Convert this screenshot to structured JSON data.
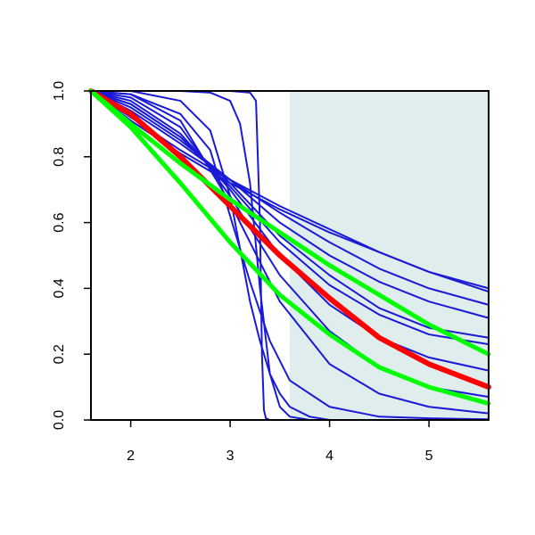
{
  "chart_data": {
    "type": "line",
    "title": "",
    "xlabel": "",
    "ylabel": "",
    "xlim": [
      1.6,
      5.6
    ],
    "ylim": [
      0.0,
      1.0
    ],
    "x_ticks": [
      2,
      3,
      4,
      5
    ],
    "x_tick_labels": [
      "2",
      "3",
      "4",
      "5"
    ],
    "y_ticks": [
      0.0,
      0.2,
      0.4,
      0.6,
      0.8,
      1.0
    ],
    "y_tick_labels": [
      "0.0",
      "0.2",
      "0.4",
      "0.6",
      "0.8",
      "1.0"
    ],
    "grid": false,
    "shaded_region": {
      "x_from": 3.6,
      "x_to": 5.6,
      "color": "#dfeded"
    },
    "colors": {
      "blue_series": "#1a1ad6",
      "red_series": "#ff0000",
      "green_series": "#00ff00"
    },
    "series": [
      {
        "color": "blue",
        "x": [
          1.6,
          2.0,
          2.5,
          3.0,
          3.5,
          4.0,
          4.5,
          5.0,
          5.6
        ],
        "y": [
          1.0,
          0.91,
          0.81,
          0.72,
          0.64,
          0.57,
          0.51,
          0.45,
          0.39
        ]
      },
      {
        "color": "blue",
        "x": [
          1.6,
          2.0,
          2.5,
          3.0,
          3.5,
          4.0,
          4.5,
          5.0,
          5.6
        ],
        "y": [
          1.0,
          0.92,
          0.82,
          0.73,
          0.65,
          0.58,
          0.51,
          0.45,
          0.4
        ]
      },
      {
        "color": "blue",
        "x": [
          1.6,
          2.0,
          2.5,
          3.0,
          3.5,
          4.0,
          4.5,
          5.0,
          5.6
        ],
        "y": [
          1.0,
          0.94,
          0.84,
          0.73,
          0.63,
          0.54,
          0.46,
          0.4,
          0.35
        ]
      },
      {
        "color": "blue",
        "x": [
          1.6,
          2.0,
          2.5,
          3.0,
          3.5,
          4.0,
          4.5,
          5.0,
          5.6
        ],
        "y": [
          1.0,
          0.95,
          0.85,
          0.73,
          0.6,
          0.5,
          0.42,
          0.36,
          0.31
        ]
      },
      {
        "color": "blue",
        "x": [
          1.6,
          2.0,
          2.5,
          3.0,
          3.5,
          4.0,
          4.5,
          5.0,
          5.6
        ],
        "y": [
          1.0,
          0.96,
          0.86,
          0.72,
          0.56,
          0.44,
          0.34,
          0.28,
          0.25
        ]
      },
      {
        "color": "blue",
        "x": [
          1.6,
          2.0,
          2.5,
          3.0,
          3.5,
          4.0,
          4.5,
          5.0,
          5.6
        ],
        "y": [
          1.0,
          0.96,
          0.86,
          0.71,
          0.54,
          0.41,
          0.32,
          0.26,
          0.23
        ]
      },
      {
        "color": "blue",
        "x": [
          1.6,
          2.0,
          2.5,
          3.0,
          3.5,
          4.0,
          4.5,
          5.0,
          5.6
        ],
        "y": [
          1.0,
          0.97,
          0.87,
          0.7,
          0.5,
          0.35,
          0.25,
          0.19,
          0.15
        ]
      },
      {
        "color": "blue",
        "x": [
          1.6,
          2.0,
          2.5,
          3.0,
          3.5,
          4.0,
          4.5,
          5.0,
          5.6
        ],
        "y": [
          1.0,
          0.98,
          0.89,
          0.68,
          0.44,
          0.27,
          0.16,
          0.1,
          0.07
        ]
      },
      {
        "color": "blue",
        "x": [
          1.6,
          2.0,
          2.5,
          3.0,
          3.5,
          4.0,
          4.5,
          5.0,
          5.6
        ],
        "y": [
          1.0,
          0.99,
          0.91,
          0.66,
          0.36,
          0.17,
          0.08,
          0.04,
          0.02
        ]
      },
      {
        "color": "blue",
        "x": [
          1.6,
          2.0,
          2.5,
          2.8,
          3.0,
          3.2,
          3.4,
          3.6,
          4.0,
          4.5,
          5.0,
          5.6
        ],
        "y": [
          1.0,
          0.99,
          0.93,
          0.82,
          0.62,
          0.42,
          0.24,
          0.12,
          0.04,
          0.01,
          0.005,
          0.002
        ]
      },
      {
        "color": "blue",
        "x": [
          1.6,
          2.0,
          2.5,
          2.8,
          3.0,
          3.1,
          3.2,
          3.3,
          3.4,
          3.5,
          3.6,
          3.8,
          4.0,
          5.6
        ],
        "y": [
          1.0,
          1.0,
          0.97,
          0.88,
          0.68,
          0.52,
          0.36,
          0.24,
          0.14,
          0.08,
          0.04,
          0.01,
          0.0,
          0.0
        ]
      },
      {
        "color": "blue",
        "x": [
          1.6,
          2.5,
          2.8,
          3.0,
          3.1,
          3.2,
          3.3,
          3.4,
          3.5,
          3.6,
          3.8,
          5.6
        ],
        "y": [
          1.0,
          1.0,
          0.995,
          0.97,
          0.9,
          0.72,
          0.4,
          0.14,
          0.04,
          0.01,
          0.0,
          0.0
        ]
      },
      {
        "color": "blue",
        "x": [
          1.6,
          3.0,
          3.2,
          3.26,
          3.3,
          3.32,
          3.34,
          3.36,
          3.4,
          5.6
        ],
        "y": [
          1.0,
          1.0,
          0.995,
          0.97,
          0.6,
          0.2,
          0.03,
          0.005,
          0.0,
          0.0
        ]
      },
      {
        "color": "red",
        "x": [
          1.6,
          2.0,
          2.5,
          3.0,
          3.5,
          4.0,
          4.5,
          5.0,
          5.6
        ],
        "y": [
          1.0,
          0.93,
          0.8,
          0.65,
          0.5,
          0.37,
          0.25,
          0.17,
          0.1
        ]
      },
      {
        "color": "green",
        "x": [
          1.6,
          2.0,
          2.5,
          3.0,
          3.5,
          4.0,
          4.5,
          5.0,
          5.6
        ],
        "y": [
          1.0,
          0.9,
          0.78,
          0.67,
          0.57,
          0.47,
          0.38,
          0.29,
          0.2
        ]
      },
      {
        "color": "green",
        "x": [
          1.6,
          2.0,
          2.5,
          3.0,
          3.5,
          4.0,
          4.5,
          5.0,
          5.6
        ],
        "y": [
          1.0,
          0.89,
          0.72,
          0.54,
          0.38,
          0.26,
          0.16,
          0.1,
          0.05
        ]
      }
    ]
  }
}
